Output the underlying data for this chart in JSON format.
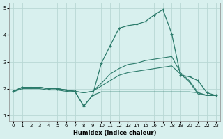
{
  "xlabel": "Humidex (Indice chaleur)",
  "x_values": [
    0,
    1,
    2,
    3,
    4,
    5,
    6,
    7,
    8,
    9,
    10,
    11,
    12,
    13,
    14,
    15,
    16,
    17,
    18,
    19,
    20,
    21,
    22,
    23
  ],
  "line_upper": [
    1.9,
    2.05,
    2.05,
    2.05,
    2.0,
    2.0,
    1.95,
    1.9,
    1.35,
    1.75,
    2.95,
    3.6,
    4.25,
    4.35,
    4.4,
    4.5,
    4.75,
    4.95,
    4.05,
    2.5,
    2.45,
    2.3,
    1.85,
    1.75
  ],
  "line_mid_upper": [
    1.9,
    2.05,
    2.05,
    2.05,
    2.0,
    2.0,
    1.95,
    1.9,
    1.85,
    1.9,
    2.2,
    2.55,
    2.75,
    2.9,
    2.95,
    3.05,
    3.1,
    3.15,
    3.2,
    2.6,
    2.3,
    1.85,
    1.75,
    1.75
  ],
  "line_mid_lower": [
    1.9,
    2.05,
    2.05,
    2.05,
    2.0,
    2.0,
    1.95,
    1.9,
    1.85,
    1.9,
    2.1,
    2.3,
    2.5,
    2.6,
    2.65,
    2.7,
    2.75,
    2.8,
    2.85,
    2.55,
    2.25,
    1.8,
    1.75,
    1.75
  ],
  "line_lower": [
    1.88,
    2.0,
    2.0,
    2.0,
    1.95,
    1.95,
    1.9,
    1.88,
    1.35,
    1.75,
    1.88,
    1.88,
    1.88,
    1.88,
    1.88,
    1.88,
    1.88,
    1.88,
    1.88,
    1.88,
    1.88,
    1.85,
    1.75,
    1.75
  ],
  "line_color": "#2a7a6a",
  "bg_color": "#d8f0ee",
  "grid_color": "#b8d8d4",
  "ylim": [
    0.8,
    5.2
  ],
  "xlim": [
    -0.5,
    23.5
  ],
  "yticks": [
    1,
    2,
    3,
    4,
    5
  ],
  "xticks": [
    0,
    1,
    2,
    3,
    4,
    5,
    6,
    7,
    8,
    9,
    10,
    11,
    12,
    13,
    14,
    15,
    16,
    17,
    18,
    19,
    20,
    21,
    22,
    23
  ],
  "tick_fontsize": 5.0,
  "xlabel_fontsize": 6.0
}
